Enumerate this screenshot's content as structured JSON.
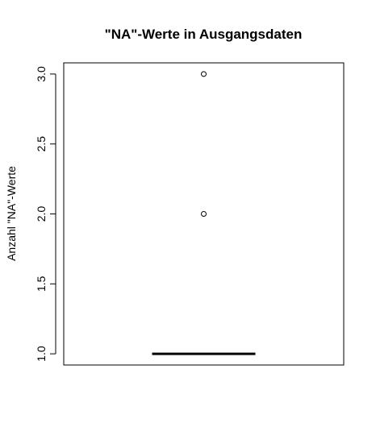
{
  "chart_data": {
    "type": "boxplot",
    "title": "\"NA\"-Werte in Ausgangsdaten",
    "xlabel": "",
    "ylabel": "Anzahl \"NA\"-Werte",
    "ylim": [
      0.92,
      3.08
    ],
    "y_ticks": [
      1.0,
      1.5,
      2.0,
      2.5,
      3.0
    ],
    "y_tick_labels": [
      "1.0",
      "1.5",
      "2.0",
      "2.5",
      "3.0"
    ],
    "grid": false,
    "box": {
      "min": 1.0,
      "q1": 1.0,
      "median": 1.0,
      "q3": 1.0,
      "max": 1.0
    },
    "outliers": [
      2.0,
      3.0
    ]
  }
}
